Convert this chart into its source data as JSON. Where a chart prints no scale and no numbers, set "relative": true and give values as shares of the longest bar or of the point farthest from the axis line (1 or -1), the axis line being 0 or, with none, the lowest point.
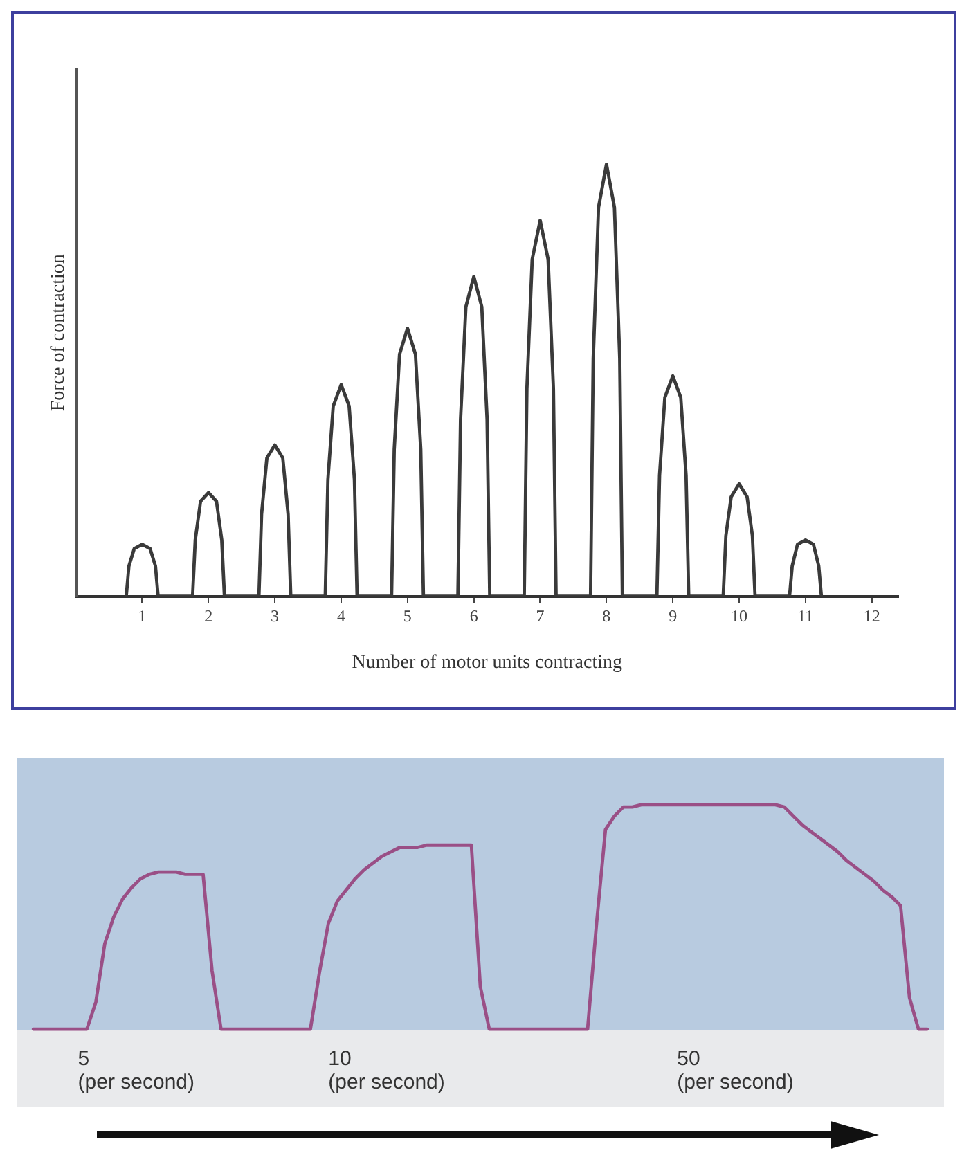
{
  "chart_data": [
    {
      "type": "line",
      "relative": true,
      "xlabel": "Number of motor units contracting",
      "ylabel": "Force of contraction",
      "xlim": [
        0,
        12.4
      ],
      "xticks": [
        1,
        2,
        3,
        4,
        5,
        6,
        7,
        8,
        9,
        10,
        11,
        12
      ],
      "tick_labels": "x",
      "grid": false,
      "legend": false,
      "marker": "none",
      "line_style": "solid",
      "x": [
        0.76,
        0.8,
        0.88,
        1,
        1.12,
        1.2,
        1.24,
        1.76,
        1.8,
        1.88,
        2,
        2.12,
        2.2,
        2.24,
        2.76,
        2.8,
        2.88,
        3,
        3.12,
        3.2,
        3.24,
        3.76,
        3.8,
        3.88,
        4,
        4.12,
        4.2,
        4.24,
        4.76,
        4.8,
        4.88,
        5,
        5.12,
        5.2,
        5.24,
        5.76,
        5.8,
        5.88,
        6,
        6.12,
        6.2,
        6.24,
        6.76,
        6.8,
        6.88,
        7,
        7.12,
        7.2,
        7.24,
        7.76,
        7.8,
        7.88,
        8,
        8.12,
        8.2,
        8.24,
        8.76,
        8.8,
        8.88,
        9,
        9.12,
        9.2,
        9.24,
        9.76,
        9.8,
        9.88,
        10,
        10.12,
        10.2,
        10.24,
        10.76,
        10.8,
        10.88,
        11,
        11.12,
        11.2,
        11.24
      ],
      "series": [
        {
          "color": "#3a3a3a",
          "values": [
            0,
            0.07,
            0.11,
            0.12,
            0.11,
            0.07,
            0,
            0,
            0.13,
            0.22,
            0.24,
            0.22,
            0.13,
            0,
            0,
            0.19,
            0.32,
            0.35,
            0.32,
            0.19,
            0,
            0,
            0.27,
            0.44,
            0.49,
            0.44,
            0.27,
            0,
            0,
            0.34,
            0.56,
            0.62,
            0.56,
            0.34,
            0,
            0,
            0.41,
            0.67,
            0.74,
            0.67,
            0.41,
            0,
            0,
            0.48,
            0.78,
            0.87,
            0.78,
            0.48,
            0,
            0,
            0.55,
            0.9,
            1,
            0.9,
            0.55,
            0,
            0,
            0.28,
            0.46,
            0.51,
            0.46,
            0.28,
            0,
            0,
            0.14,
            0.23,
            0.26,
            0.23,
            0.14,
            0,
            0,
            0.07,
            0.12,
            0.13,
            0.12,
            0.07,
            0
          ]
        }
      ]
    },
    {
      "type": "line",
      "relative": true,
      "tick_labels": false,
      "grid": false,
      "legend": false,
      "marker": "none",
      "line_style": "solid",
      "categories": [
        null,
        null,
        null,
        null,
        null,
        null,
        null,
        null,
        null,
        null,
        null,
        null,
        null,
        null,
        null,
        null,
        null,
        null,
        null,
        null,
        null,
        null,
        null,
        null,
        null,
        null,
        null,
        null,
        null,
        null,
        null,
        null,
        null,
        null,
        null,
        null,
        null,
        null,
        null,
        null,
        null,
        null,
        null,
        null,
        null,
        null,
        null,
        null,
        null,
        null,
        null,
        null,
        null,
        null,
        null,
        null,
        null,
        null,
        null,
        null,
        null,
        null,
        null,
        null,
        null,
        null,
        null,
        null,
        null,
        null,
        null,
        null,
        null,
        null,
        null,
        null,
        null,
        null,
        null,
        null,
        null,
        null,
        null,
        null,
        null,
        null,
        null,
        null,
        null,
        null,
        null,
        null,
        null,
        null,
        null,
        null,
        null,
        null,
        null,
        null,
        null
      ],
      "series": [
        {
          "color": "#9a4f86",
          "values": [
            0,
            0,
            0,
            0,
            0,
            0,
            0,
            0.12,
            0.38,
            0.5,
            0.58,
            0.63,
            0.67,
            0.69,
            0.7,
            0.7,
            0.7,
            0.69,
            0.69,
            0.69,
            0.26,
            0,
            0,
            0,
            0,
            0,
            0,
            0,
            0,
            0,
            0,
            0,
            0.25,
            0.47,
            0.57,
            0.62,
            0.67,
            0.71,
            0.74,
            0.77,
            0.79,
            0.81,
            0.81,
            0.81,
            0.82,
            0.82,
            0.82,
            0.82,
            0.82,
            0.82,
            0.19,
            0,
            0,
            0,
            0,
            0,
            0,
            0,
            0,
            0,
            0,
            0,
            0,
            0.47,
            0.89,
            0.95,
            0.99,
            0.99,
            1,
            1,
            1,
            1,
            1,
            1,
            1,
            1,
            1,
            1,
            1,
            1,
            1,
            1,
            1,
            1,
            0.99,
            0.95,
            0.91,
            0.88,
            0.85,
            0.82,
            0.79,
            0.75,
            0.72,
            0.69,
            0.66,
            0.62,
            0.59,
            0.55,
            0.14,
            0,
            0
          ]
        }
      ],
      "annotations": [
        "5\n(per second)",
        "10\n(per second)",
        "50\n(per second)"
      ]
    }
  ]
}
